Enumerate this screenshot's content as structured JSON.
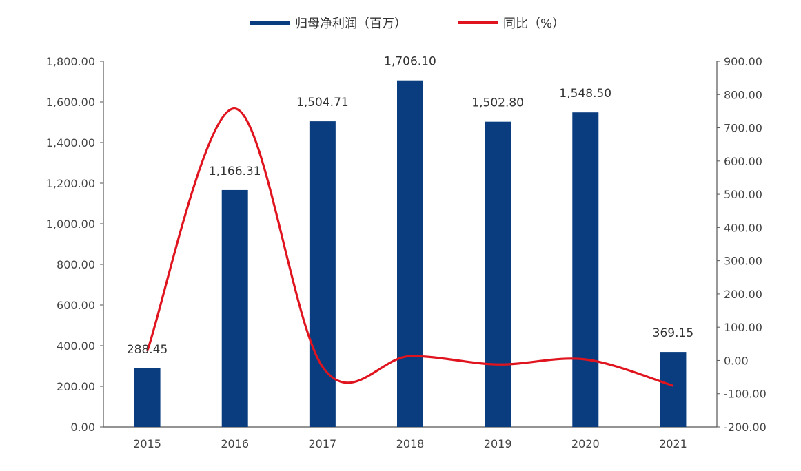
{
  "chart_data": {
    "type": "bar",
    "categories": [
      "2015",
      "2016",
      "2017",
      "2018",
      "2019",
      "2020",
      "2021"
    ],
    "series": [
      {
        "name": "归母净利润（百万）",
        "type": "bar",
        "axis": "left",
        "values": [
          288.45,
          1166.31,
          1504.71,
          1706.1,
          1502.8,
          1548.5,
          369.15
        ],
        "labels": [
          "288.45",
          "1,166.31",
          "1,504.71",
          "1,706.10",
          "1,502.80",
          "1,548.50",
          "369.15"
        ],
        "color": "#0a3d7f"
      },
      {
        "name": "同比（%）",
        "type": "line",
        "smooth": true,
        "axis": "right",
        "values": [
          28,
          758,
          -19,
          13,
          -12,
          3,
          -76
        ],
        "color": "#e0141e"
      }
    ],
    "y_left": {
      "ylim": [
        0,
        1800
      ],
      "ticks": [
        {
          "value": 0,
          "label": "0.00"
        },
        {
          "value": 200,
          "label": "200.00"
        },
        {
          "value": 400,
          "label": "400.00"
        },
        {
          "value": 600,
          "label": "600.00"
        },
        {
          "value": 800,
          "label": "800.00"
        },
        {
          "value": 1000,
          "label": "1,000.00"
        },
        {
          "value": 1200,
          "label": "1,200.00"
        },
        {
          "value": 1400,
          "label": "1,400.00"
        },
        {
          "value": 1600,
          "label": "1,600.00"
        },
        {
          "value": 1800,
          "label": "1,800.00"
        }
      ]
    },
    "y_right": {
      "ylim": [
        -200,
        900
      ],
      "ticks": [
        {
          "value": -200,
          "label": "-200.00"
        },
        {
          "value": -100,
          "label": "-100.00"
        },
        {
          "value": 0,
          "label": "0.00"
        },
        {
          "value": 100,
          "label": "100.00"
        },
        {
          "value": 200,
          "label": "200.00"
        },
        {
          "value": 300,
          "label": "300.00"
        },
        {
          "value": 400,
          "label": "400.00"
        },
        {
          "value": 500,
          "label": "500.00"
        },
        {
          "value": 600,
          "label": "600.00"
        },
        {
          "value": 700,
          "label": "700.00"
        },
        {
          "value": 800,
          "label": "800.00"
        },
        {
          "value": 900,
          "label": "900.00"
        }
      ]
    },
    "legend_position": "top-center",
    "grid": false
  }
}
